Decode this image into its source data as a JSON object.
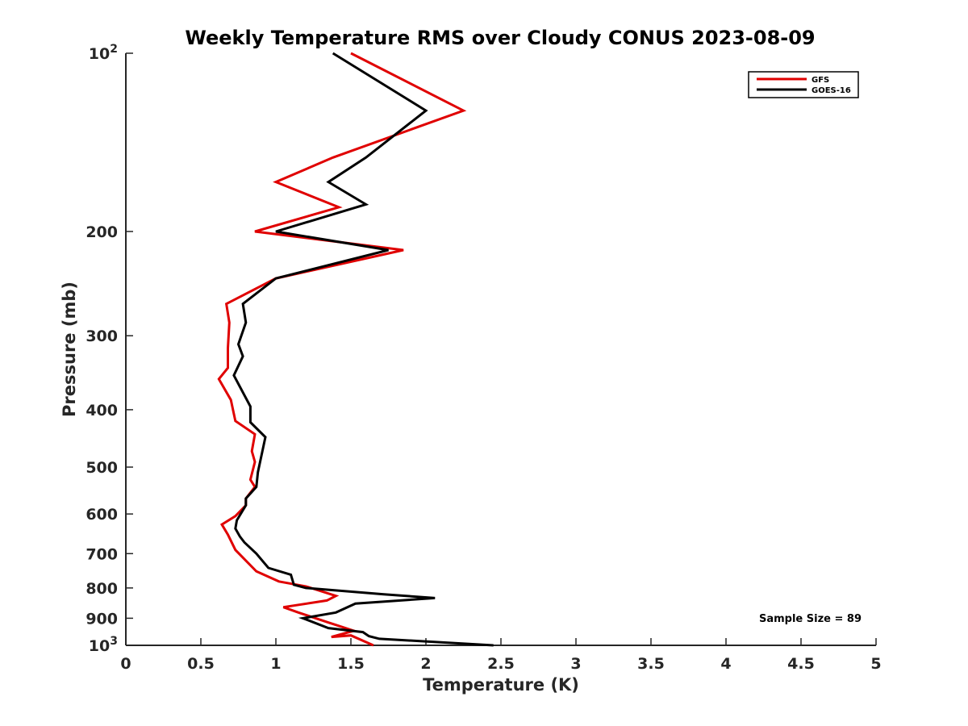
{
  "chart_data": {
    "type": "line",
    "title": "Weekly Temperature RMS over Cloudy CONUS 2023-08-09",
    "xlabel": "Temperature (K)",
    "ylabel": "Pressure (mb)",
    "xlim": [
      0,
      5
    ],
    "ylim": [
      100,
      1000
    ],
    "y_scale": "log",
    "y_reversed": true,
    "x_ticks": [
      {
        "value": 0,
        "label": "0"
      },
      {
        "value": 0.5,
        "label": "0.5"
      },
      {
        "value": 1,
        "label": "1"
      },
      {
        "value": 1.5,
        "label": "1.5"
      },
      {
        "value": 2,
        "label": "2"
      },
      {
        "value": 2.5,
        "label": "2.5"
      },
      {
        "value": 3,
        "label": "3"
      },
      {
        "value": 3.5,
        "label": "3.5"
      },
      {
        "value": 4,
        "label": "4"
      },
      {
        "value": 4.5,
        "label": "4.5"
      },
      {
        "value": 5,
        "label": "5"
      }
    ],
    "y_ticks": [
      {
        "value": 100,
        "label": "10",
        "sup": "2"
      },
      {
        "value": 200,
        "label": "200"
      },
      {
        "value": 300,
        "label": "300"
      },
      {
        "value": 400,
        "label": "400"
      },
      {
        "value": 500,
        "label": "500"
      },
      {
        "value": 600,
        "label": "600"
      },
      {
        "value": 700,
        "label": "700"
      },
      {
        "value": 800,
        "label": "800"
      },
      {
        "value": 900,
        "label": "900"
      },
      {
        "value": 1000,
        "label": "10",
        "sup": "3"
      }
    ],
    "grid": false,
    "legend_position": "top-right",
    "annotation": "Sample Size = 89",
    "series": [
      {
        "name": "GFS",
        "color": "#e00000",
        "points": [
          [
            1.5,
            100
          ],
          [
            2.25,
            125
          ],
          [
            1.38,
            150
          ],
          [
            1.0,
            165
          ],
          [
            1.42,
            182
          ],
          [
            0.86,
            200
          ],
          [
            1.85,
            215
          ],
          [
            1.0,
            240
          ],
          [
            0.67,
            265
          ],
          [
            0.69,
            285
          ],
          [
            0.68,
            315
          ],
          [
            0.68,
            340
          ],
          [
            0.62,
            355
          ],
          [
            0.7,
            385
          ],
          [
            0.73,
            418
          ],
          [
            0.86,
            440
          ],
          [
            0.84,
            470
          ],
          [
            0.86,
            490
          ],
          [
            0.83,
            525
          ],
          [
            0.86,
            540
          ],
          [
            0.8,
            565
          ],
          [
            0.8,
            580
          ],
          [
            0.73,
            605
          ],
          [
            0.64,
            625
          ],
          [
            0.68,
            650
          ],
          [
            0.73,
            690
          ],
          [
            0.87,
            750
          ],
          [
            1.02,
            780
          ],
          [
            1.2,
            795
          ],
          [
            1.4,
            825
          ],
          [
            1.34,
            840
          ],
          [
            1.05,
            862
          ],
          [
            1.15,
            880
          ],
          [
            1.35,
            915
          ],
          [
            1.52,
            945
          ],
          [
            1.37,
            968
          ],
          [
            1.5,
            962
          ],
          [
            1.65,
            1000
          ]
        ]
      },
      {
        "name": "GOES-16",
        "color": "#000000",
        "points": [
          [
            1.38,
            100
          ],
          [
            2.0,
            125
          ],
          [
            1.6,
            150
          ],
          [
            1.35,
            165
          ],
          [
            1.6,
            180
          ],
          [
            1.0,
            200
          ],
          [
            1.75,
            215
          ],
          [
            1.0,
            240
          ],
          [
            0.78,
            265
          ],
          [
            0.8,
            285
          ],
          [
            0.75,
            310
          ],
          [
            0.78,
            325
          ],
          [
            0.72,
            350
          ],
          [
            0.83,
            395
          ],
          [
            0.83,
            420
          ],
          [
            0.93,
            445
          ],
          [
            0.88,
            510
          ],
          [
            0.87,
            540
          ],
          [
            0.8,
            565
          ],
          [
            0.8,
            580
          ],
          [
            0.74,
            615
          ],
          [
            0.73,
            635
          ],
          [
            0.76,
            655
          ],
          [
            0.79,
            670
          ],
          [
            0.87,
            700
          ],
          [
            0.95,
            740
          ],
          [
            1.1,
            760
          ],
          [
            1.12,
            790
          ],
          [
            1.2,
            800
          ],
          [
            1.72,
            820
          ],
          [
            2.06,
            832
          ],
          [
            1.53,
            850
          ],
          [
            1.4,
            880
          ],
          [
            1.18,
            900
          ],
          [
            1.35,
            935
          ],
          [
            1.58,
            950
          ],
          [
            1.62,
            965
          ],
          [
            1.69,
            975
          ],
          [
            2.45,
            1000
          ]
        ]
      }
    ]
  }
}
